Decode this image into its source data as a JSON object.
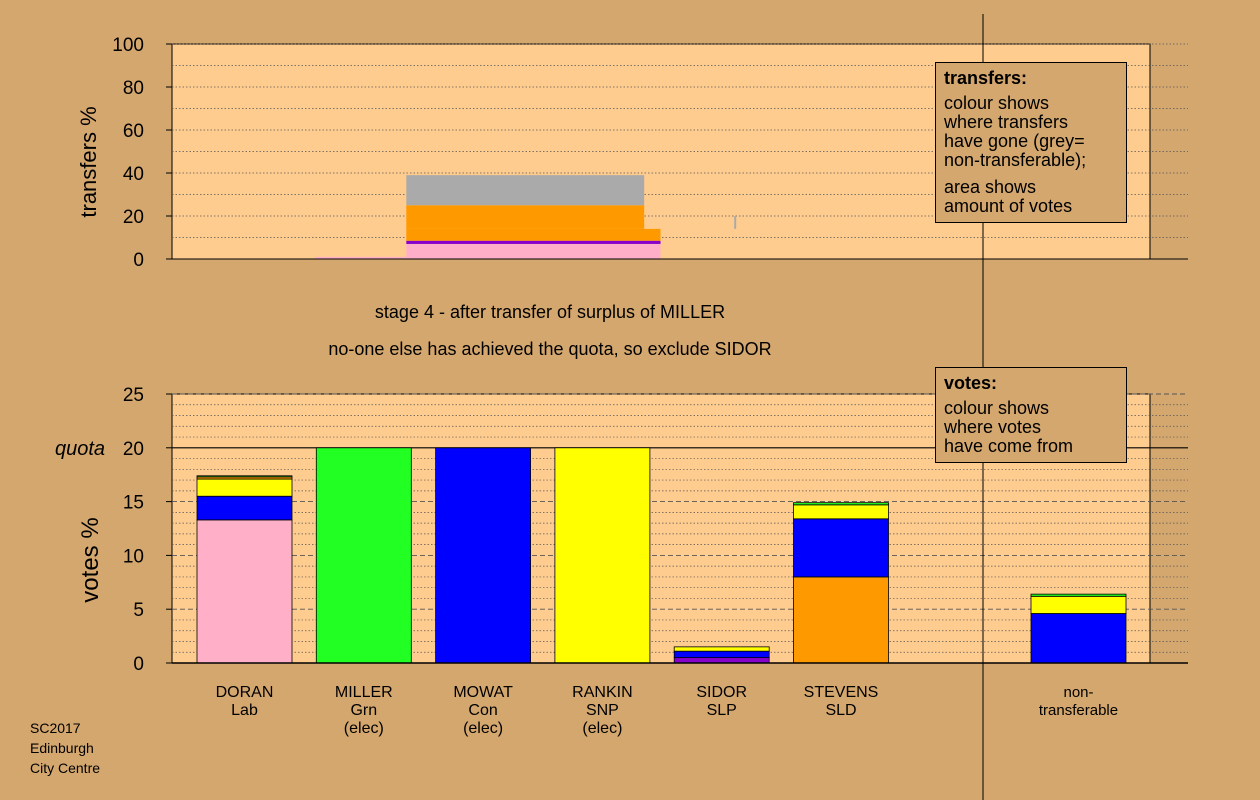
{
  "stage_title": "stage 4 - after transfer of surplus of MILLER",
  "stage_subtitle": "no-one else has achieved the quota, so exclude SIDOR",
  "footer": [
    "SC2017",
    "Edinburgh",
    "City Centre"
  ],
  "legend_transfers": {
    "title": "transfers:",
    "lines1": [
      "colour shows",
      "where transfers",
      "have gone (grey=",
      "non-transferable);"
    ],
    "lines2": [
      "area shows",
      "amount of votes"
    ]
  },
  "legend_votes": {
    "title": "votes:",
    "lines": [
      "colour shows",
      "where votes",
      "have come from"
    ]
  },
  "colors": {
    "background": "#d4a76f",
    "panel": "#ffcc8f",
    "Lab": "#ffb0c8",
    "Grn": "#22ff22",
    "Con": "#0000ff",
    "SNP": "#ffff00",
    "SLP": "#8800cc",
    "SLD": "#ff9900",
    "nontransferable": "#aaaaaa"
  },
  "chart_data": [
    {
      "type": "bar",
      "ylabel": "transfers %",
      "ylim": [
        0,
        100
      ],
      "yticks": [
        0,
        20,
        40,
        60,
        80,
        100
      ],
      "grid": true,
      "legend": "top-right",
      "transfer_blocks": [
        {
          "from": "MILLER",
          "to": "DORAN",
          "party": "Lab",
          "y0": 0,
          "y1": 1,
          "x0": "DORAN",
          "x1": "MILLER"
        },
        {
          "from": "MILLER",
          "to": "DORAN",
          "party": "Lab",
          "y0": 0,
          "y1": 7,
          "x0": "MILLER",
          "x1": "STEVENS"
        },
        {
          "from": "MILLER",
          "to": "SIDOR",
          "party": "SLP",
          "y0": 7,
          "y1": 8.5,
          "x0": "MILLER",
          "x1": "STEVENS"
        },
        {
          "from": "MILLER",
          "to": "STEVENS",
          "party": "SLD",
          "y0": 8.5,
          "y1": 14,
          "x0": "MILLER",
          "x1": "STEVENS"
        },
        {
          "from": "MILLER",
          "to": "STEVENS",
          "party": "SLD",
          "y0": 14,
          "y1": 25,
          "x0": "MILLER",
          "x1": "SIDOR"
        },
        {
          "from": "MILLER",
          "to": "non-transferable",
          "party": "nontransferable",
          "y0": 14,
          "y1": 20,
          "x0": "SIDOR",
          "x1": "STEVENS"
        },
        {
          "from": "MILLER",
          "to": "non-transferable",
          "party": "nontransferable",
          "y0": 25,
          "y1": 39,
          "x0": "MILLER",
          "x1": "SIDOR"
        }
      ]
    },
    {
      "type": "bar",
      "stacked": true,
      "ylabel": "votes %",
      "ylim": [
        0,
        25
      ],
      "yticks": [
        0,
        5,
        10,
        15,
        20,
        25
      ],
      "quota": 20,
      "quota_label": "quota",
      "grid": true,
      "legend": "top-right",
      "categories": [
        {
          "name": "DORAN",
          "party": "Lab",
          "status": ""
        },
        {
          "name": "MILLER",
          "party": "Grn",
          "status": "(elec)"
        },
        {
          "name": "MOWAT",
          "party": "Con",
          "status": "(elec)"
        },
        {
          "name": "RANKIN",
          "party": "SNP",
          "status": "(elec)"
        },
        {
          "name": "SIDOR",
          "party": "SLP",
          "status": ""
        },
        {
          "name": "STEVENS",
          "party": "SLD",
          "status": ""
        },
        {
          "name": "non-",
          "party": "transferable",
          "status": ""
        }
      ],
      "stacks": [
        [
          {
            "party": "Lab",
            "value": 13.3
          },
          {
            "party": "Con",
            "value": 2.2
          },
          {
            "party": "SNP",
            "value": 1.6
          },
          {
            "party": "SLD",
            "value": 0.2
          },
          {
            "party": "Grn",
            "value": 0.1
          }
        ],
        [
          {
            "party": "Grn",
            "value": 20.0
          }
        ],
        [
          {
            "party": "Con",
            "value": 20.0
          }
        ],
        [
          {
            "party": "SNP",
            "value": 20.0
          }
        ],
        [
          {
            "party": "SLP",
            "value": 0.5
          },
          {
            "party": "Con",
            "value": 0.6
          },
          {
            "party": "SNP",
            "value": 0.4
          }
        ],
        [
          {
            "party": "SLD",
            "value": 8.0
          },
          {
            "party": "Con",
            "value": 5.4
          },
          {
            "party": "SNP",
            "value": 1.3
          },
          {
            "party": "Grn",
            "value": 0.2
          }
        ],
        [
          {
            "party": "Con",
            "value": 4.6
          },
          {
            "party": "SNP",
            "value": 1.6
          },
          {
            "party": "Grn",
            "value": 0.2
          }
        ]
      ]
    }
  ]
}
